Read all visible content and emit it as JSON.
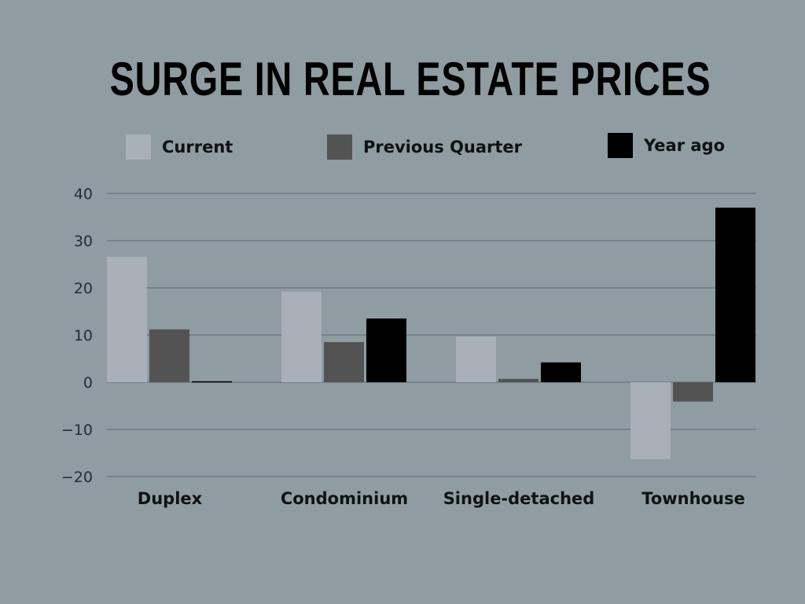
{
  "chart_data": {
    "type": "bar",
    "title": "SURGE IN REAL ESTATE PRICES",
    "categories": [
      "Duplex",
      "Condominium",
      "Single-detached",
      "Townhouse"
    ],
    "series": [
      {
        "name": "Current",
        "color": "#a9b0b7",
        "values": [
          26.6,
          19.2,
          9.7,
          -16.3
        ]
      },
      {
        "name": "Previous Quarter",
        "color": "#535353",
        "values": [
          11.2,
          8.5,
          0.7,
          -4.1
        ]
      },
      {
        "name": "Year ago",
        "color": "#000000",
        "values": [
          0.2,
          13.5,
          4.2,
          37
        ]
      }
    ],
    "ylim": [
      -20,
      40
    ],
    "yticks": [
      40,
      30,
      20,
      10,
      0,
      -10,
      -20
    ],
    "ytick_labels": [
      "40",
      "30",
      "20",
      "10",
      "0",
      "−10",
      "−20"
    ],
    "grid": true,
    "legend_position": "top",
    "xlabel": "",
    "ylabel": ""
  }
}
